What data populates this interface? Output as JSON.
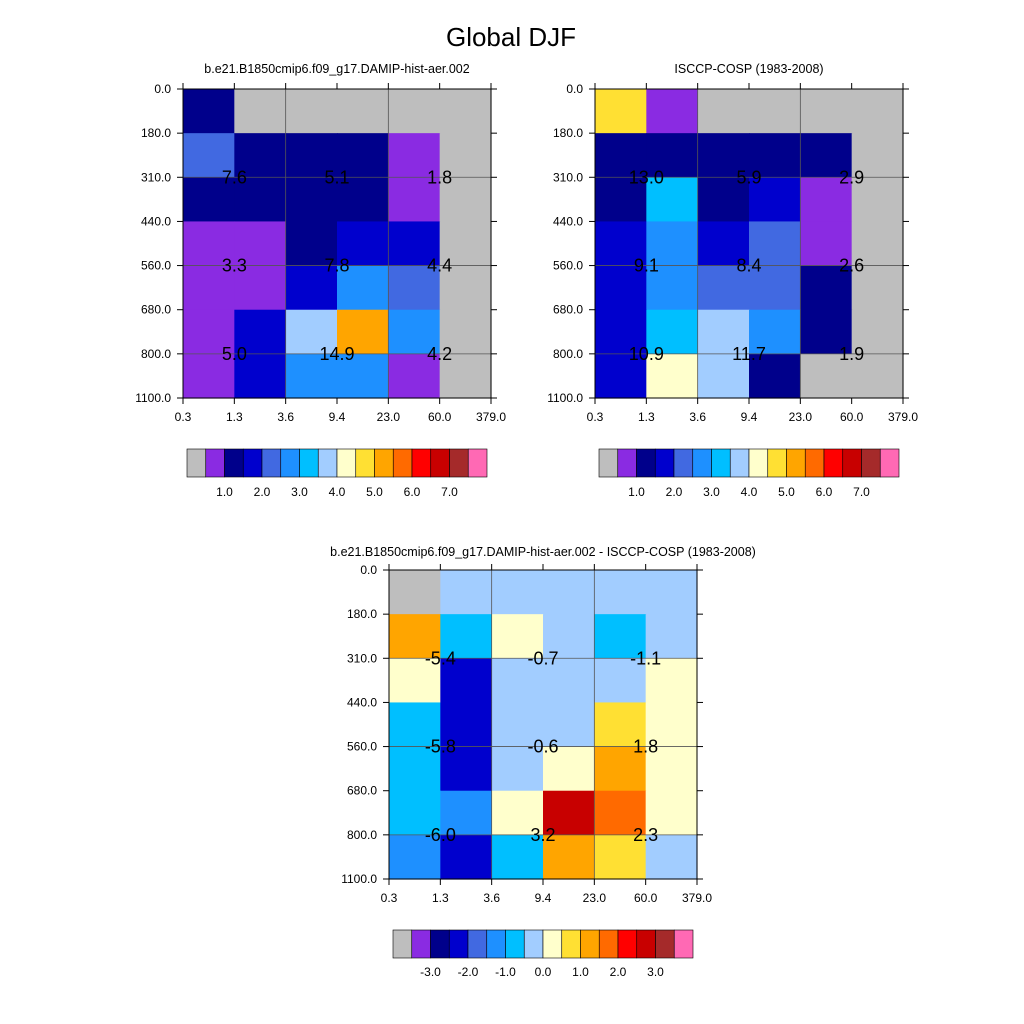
{
  "figure": {
    "title": "Global DJF"
  },
  "colors": {
    "model_levels": [
      "#bebebe",
      "#8a2be2",
      "#00008b",
      "#0000cd",
      "#4169e1",
      "#1e90ff",
      "#00bfff",
      "#a2cdff",
      "#ffffcc",
      "#ffe033",
      "#ffa500",
      "#ff6a00",
      "#ff0000",
      "#c80000",
      "#a52a2a",
      "#ff69b4"
    ],
    "diff_levels": [
      "#bebebe",
      "#8a2be2",
      "#00008b",
      "#0000cd",
      "#4169e1",
      "#1e90ff",
      "#00bfff",
      "#a2cdff",
      "#ffffcc",
      "#ffe033",
      "#ffa500",
      "#ff6a00",
      "#ff0000",
      "#c80000",
      "#a52a2a",
      "#ff69b4"
    ]
  },
  "chart_data": [
    {
      "type": "heatmap",
      "title": "b.e21.B1850cmip6.f09_g17.DAMIP-hist-aer.002",
      "x_ticks": [
        "0.3",
        "1.3",
        "3.6",
        "9.4",
        "23.0",
        "60.0",
        "379.0"
      ],
      "y_ticks": [
        "0.0",
        "180.0",
        "310.0",
        "440.0",
        "560.0",
        "680.0",
        "800.0",
        "1100.0"
      ],
      "cells": [
        [
          2,
          0,
          0,
          0,
          0,
          0
        ],
        [
          4,
          2,
          2,
          2,
          1,
          0
        ],
        [
          2,
          2,
          2,
          2,
          1,
          0
        ],
        [
          1,
          1,
          2,
          3,
          3,
          0
        ],
        [
          1,
          1,
          3,
          5,
          4,
          0
        ],
        [
          1,
          3,
          7,
          10,
          5,
          0
        ],
        [
          1,
          3,
          5,
          5,
          1,
          0
        ]
      ],
      "labels": [
        {
          "row": 1,
          "col": 0,
          "text": "7.6"
        },
        {
          "row": 1,
          "col": 2,
          "text": "5.1"
        },
        {
          "row": 1,
          "col": 4,
          "text": "1.8"
        },
        {
          "row": 3,
          "col": 0,
          "text": "3.3"
        },
        {
          "row": 3,
          "col": 2,
          "text": "7.8"
        },
        {
          "row": 3,
          "col": 4,
          "text": "4.4"
        },
        {
          "row": 5,
          "col": 0,
          "text": "5.0"
        },
        {
          "row": 5,
          "col": 2,
          "text": "14.9"
        },
        {
          "row": 5,
          "col": 4,
          "text": "4.2"
        }
      ],
      "colorbar_labels": [
        "1.0",
        "2.0",
        "3.0",
        "4.0",
        "5.0",
        "6.0",
        "7.0"
      ]
    },
    {
      "type": "heatmap",
      "title": "ISCCP-COSP (1983-2008)",
      "x_ticks": [
        "0.3",
        "1.3",
        "3.6",
        "9.4",
        "23.0",
        "60.0",
        "379.0"
      ],
      "y_ticks": [
        "0.0",
        "180.0",
        "310.0",
        "440.0",
        "560.0",
        "680.0",
        "800.0",
        "1100.0"
      ],
      "cells": [
        [
          9,
          1,
          0,
          0,
          0,
          0
        ],
        [
          2,
          2,
          2,
          2,
          2,
          0
        ],
        [
          2,
          6,
          2,
          3,
          1,
          0
        ],
        [
          3,
          5,
          3,
          4,
          1,
          0
        ],
        [
          3,
          5,
          4,
          4,
          2,
          0
        ],
        [
          3,
          6,
          7,
          5,
          2,
          0
        ],
        [
          3,
          8,
          7,
          2,
          0,
          0
        ]
      ],
      "labels": [
        {
          "row": 1,
          "col": 0,
          "text": "13.0"
        },
        {
          "row": 1,
          "col": 2,
          "text": "5.9"
        },
        {
          "row": 1,
          "col": 4,
          "text": "2.9"
        },
        {
          "row": 3,
          "col": 0,
          "text": "9.1"
        },
        {
          "row": 3,
          "col": 2,
          "text": "8.4"
        },
        {
          "row": 3,
          "col": 4,
          "text": "2.6"
        },
        {
          "row": 5,
          "col": 0,
          "text": "10.9"
        },
        {
          "row": 5,
          "col": 2,
          "text": "11.7"
        },
        {
          "row": 5,
          "col": 4,
          "text": "1.9"
        }
      ],
      "colorbar_labels": [
        "1.0",
        "2.0",
        "3.0",
        "4.0",
        "5.0",
        "6.0",
        "7.0"
      ]
    },
    {
      "type": "heatmap",
      "title": "b.e21.B1850cmip6.f09_g17.DAMIP-hist-aer.002 - ISCCP-COSP (1983-2008)",
      "x_ticks": [
        "0.3",
        "1.3",
        "3.6",
        "9.4",
        "23.0",
        "60.0",
        "379.0"
      ],
      "y_ticks": [
        "0.0",
        "180.0",
        "310.0",
        "440.0",
        "560.0",
        "680.0",
        "800.0",
        "1100.0"
      ],
      "cells": [
        [
          0,
          7,
          7,
          7,
          7,
          7
        ],
        [
          10,
          6,
          8,
          7,
          6,
          7
        ],
        [
          8,
          3,
          7,
          7,
          7,
          8
        ],
        [
          6,
          3,
          7,
          7,
          9,
          8
        ],
        [
          6,
          3,
          7,
          8,
          10,
          8
        ],
        [
          6,
          5,
          8,
          13,
          11,
          8
        ],
        [
          5,
          3,
          6,
          10,
          9,
          7
        ]
      ],
      "labels": [
        {
          "row": 1,
          "col": 0,
          "text": "-5.4"
        },
        {
          "row": 1,
          "col": 2,
          "text": "-0.7"
        },
        {
          "row": 1,
          "col": 4,
          "text": "-1.1"
        },
        {
          "row": 3,
          "col": 0,
          "text": "-5.8"
        },
        {
          "row": 3,
          "col": 2,
          "text": "-0.6"
        },
        {
          "row": 3,
          "col": 4,
          "text": "1.8"
        },
        {
          "row": 5,
          "col": 0,
          "text": "-6.0"
        },
        {
          "row": 5,
          "col": 2,
          "text": "3.2"
        },
        {
          "row": 5,
          "col": 4,
          "text": "2.3"
        }
      ],
      "colorbar_labels": [
        "-3.0",
        "-2.0",
        "-1.0",
        "0.0",
        "1.0",
        "2.0",
        "3.0"
      ]
    }
  ]
}
